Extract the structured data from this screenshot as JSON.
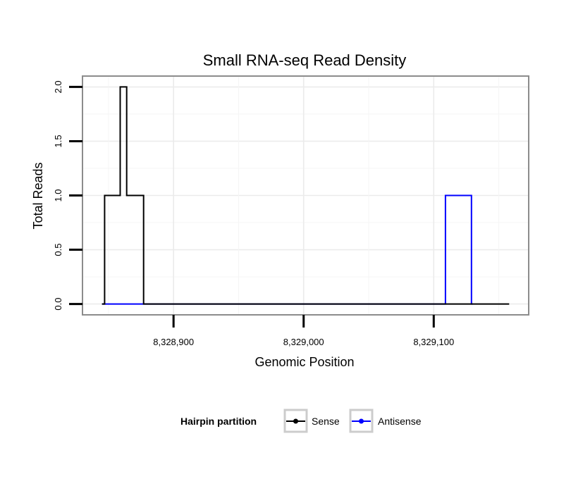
{
  "chart_data": {
    "type": "line",
    "title": "Small RNA-seq Read Density",
    "xlabel": "Genomic Position",
    "ylabel": "Total Reads",
    "xlim": [
      8328830,
      8329173
    ],
    "ylim": [
      -0.1,
      2.1
    ],
    "x_ticks": [
      8328900,
      8329000,
      8329100
    ],
    "x_tick_labels": [
      "8,328,900",
      "8,329,000",
      "8,329,100"
    ],
    "y_ticks": [
      0,
      0.5,
      1,
      1.5,
      2
    ],
    "y_tick_labels": [
      "0.0",
      "0.5",
      "1.0",
      "1.5",
      "2.0"
    ],
    "grid": true,
    "legend": {
      "title": "Hairpin partition",
      "position": "bottom"
    },
    "series": [
      {
        "name": "Sense",
        "color": "#000000",
        "x": [
          8328845,
          8328847,
          8328847,
          8328859,
          8328859,
          8328864,
          8328864,
          8328877,
          8328877,
          8329158
        ],
        "y": [
          0,
          0,
          1,
          1,
          2,
          2,
          1,
          1,
          0,
          0
        ]
      },
      {
        "name": "Antisense",
        "color": "#0000ff",
        "x": [
          8328845,
          8328878,
          8329108,
          8329109,
          8329109,
          8329129,
          8329129,
          8329130
        ],
        "y": [
          0,
          0,
          0,
          0,
          1,
          1,
          0,
          0
        ]
      }
    ]
  }
}
